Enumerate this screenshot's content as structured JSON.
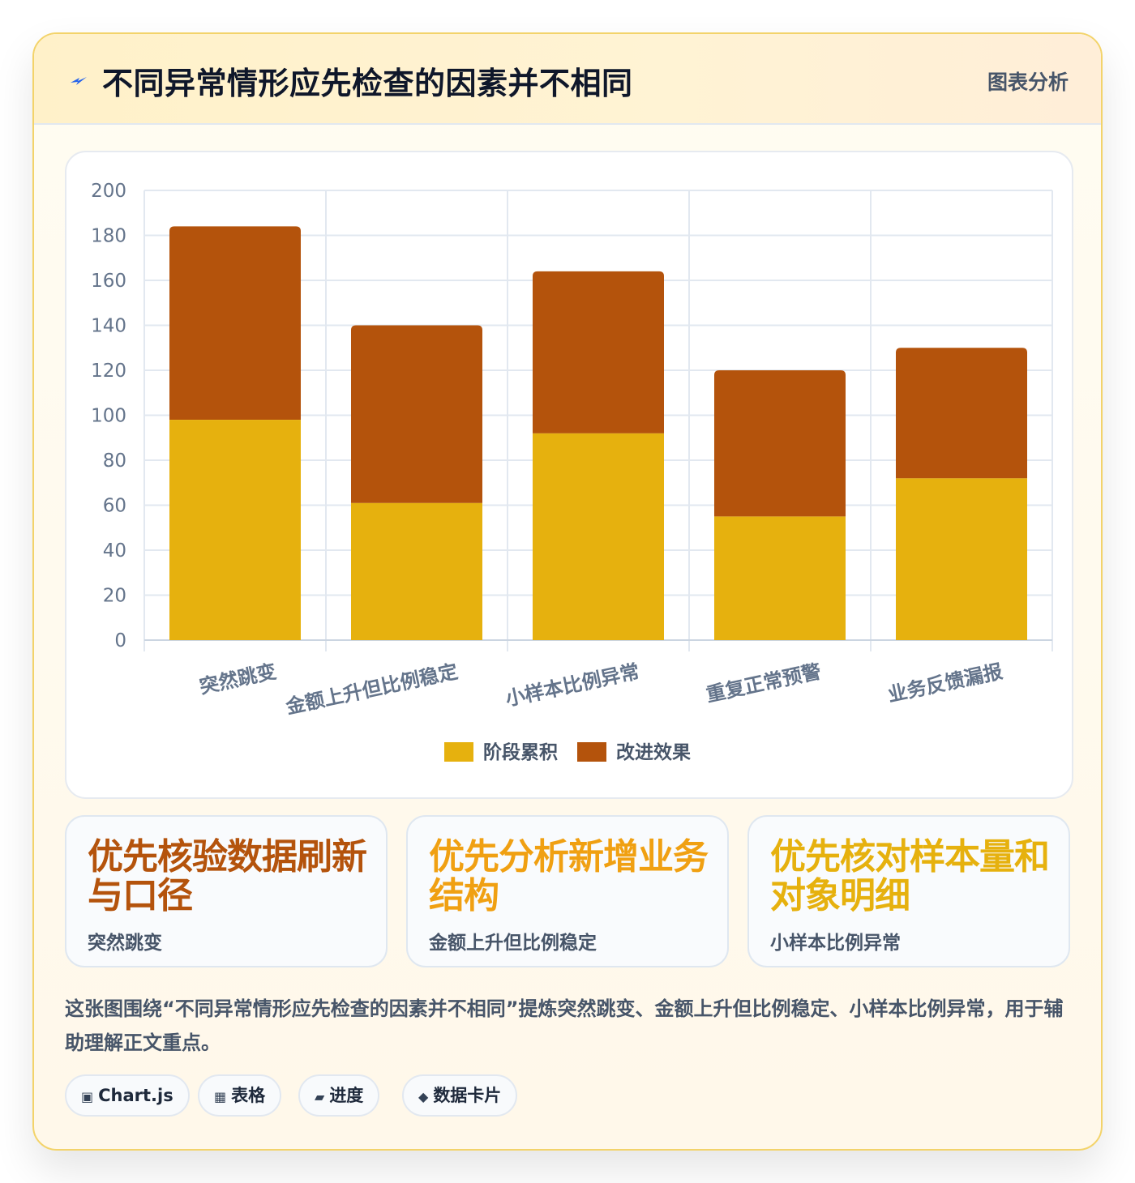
{
  "header": {
    "title": "不同异常情形应先检查的因素并不相同",
    "tag": "图表分析"
  },
  "chart_data": {
    "type": "bar",
    "stacked": true,
    "categories": [
      "突然跳变",
      "金额上升但比例稳定",
      "小样本比例异常",
      "重复正常预警",
      "业务反馈漏报"
    ],
    "series": [
      {
        "name": "阶段累积",
        "values": [
          98,
          61,
          92,
          55,
          72
        ],
        "color": "#e6b10e"
      },
      {
        "name": "改进效果",
        "values": [
          86,
          79,
          72,
          65,
          58
        ],
        "color": "#b4530c"
      }
    ],
    "ylim": [
      0,
      200
    ],
    "yticks": [
      0,
      20,
      40,
      60,
      80,
      100,
      120,
      140,
      160,
      180,
      200
    ],
    "grid": true,
    "legend_position": "bottom"
  },
  "stats": [
    {
      "value": "优先核验数据刷新与口径",
      "label": "突然跳变",
      "color": "#b4530c"
    },
    {
      "value": "优先分析新增业务结构",
      "label": "金额上升但比例稳定",
      "color": "#f0a012"
    },
    {
      "value": "优先核对样本量和对象明细",
      "label": "小样本比例异常",
      "color": "#e6b10e"
    }
  ],
  "description": "这张图围绕“不同异常情形应先检查的因素并不相同”提炼突然跳变、金额上升但比例稳定、小样本比例异常，用于辅助理解正文重点。",
  "chips": [
    {
      "icon": "▣",
      "label": "Chart.js"
    },
    {
      "icon": "▦",
      "label": "表格"
    },
    {
      "icon": "▰",
      "label": "进度"
    },
    {
      "icon": "◆",
      "label": "数据卡片"
    }
  ],
  "icons": {
    "header": "lightning-bolt-icon",
    "chips": [
      "chart-icon",
      "table-icon",
      "progress-icon",
      "diamond-icon"
    ]
  }
}
